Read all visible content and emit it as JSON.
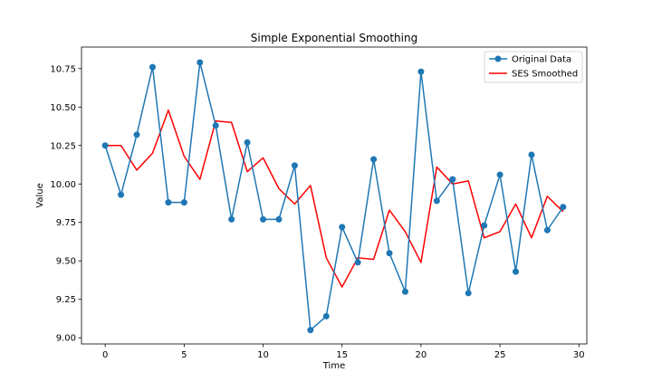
{
  "chart_data": {
    "type": "line",
    "title": "Simple Exponential Smoothing",
    "xlabel": "Time",
    "ylabel": "Value",
    "xlim": [
      -1.5,
      30.5
    ],
    "ylim": [
      8.96,
      10.89
    ],
    "xticks": [
      0,
      5,
      10,
      15,
      20,
      25,
      30
    ],
    "yticks": [
      9.0,
      9.25,
      9.5,
      9.75,
      10.0,
      10.25,
      10.5,
      10.75
    ],
    "ytick_labels": [
      "9.00",
      "9.25",
      "9.50",
      "9.75",
      "10.00",
      "10.25",
      "10.50",
      "10.75"
    ],
    "grid": false,
    "legend_position": "top-right",
    "x": [
      0,
      1,
      2,
      3,
      4,
      5,
      6,
      7,
      8,
      9,
      10,
      11,
      12,
      13,
      14,
      15,
      16,
      17,
      18,
      19,
      20,
      21,
      22,
      23,
      24,
      25,
      26,
      27,
      28,
      29
    ],
    "series": [
      {
        "name": "Original Data",
        "color": "#1f77b4",
        "marker": "circle",
        "values": [
          10.25,
          9.93,
          10.32,
          10.76,
          9.88,
          9.88,
          10.79,
          10.38,
          9.77,
          10.27,
          9.77,
          9.77,
          10.12,
          9.05,
          9.14,
          9.72,
          9.49,
          10.16,
          9.55,
          9.3,
          10.73,
          9.89,
          10.03,
          9.29,
          9.73,
          10.06,
          9.43,
          10.19,
          9.7,
          9.85
        ]
      },
      {
        "name": "SES Smoothed",
        "color": "#ff0000",
        "marker": "none",
        "values": [
          10.25,
          10.25,
          10.09,
          10.2,
          10.48,
          10.18,
          10.03,
          10.41,
          10.4,
          10.08,
          10.17,
          9.97,
          9.87,
          9.99,
          9.52,
          9.33,
          9.52,
          9.51,
          9.83,
          9.69,
          9.49,
          10.11,
          10.0,
          10.02,
          9.65,
          9.69,
          9.87,
          9.65,
          9.92,
          9.82
        ]
      }
    ]
  }
}
